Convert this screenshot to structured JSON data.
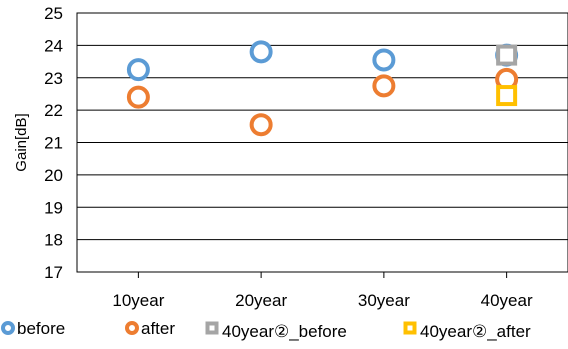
{
  "chart_data": {
    "type": "scatter",
    "title": "",
    "xlabel": "",
    "ylabel": "Gain[dB]",
    "categories": [
      "10year",
      "20year",
      "30year",
      "40year"
    ],
    "ylim": [
      17,
      25
    ],
    "yticks": [
      17,
      18,
      19,
      20,
      21,
      22,
      23,
      24,
      25
    ],
    "grid": "horizontal",
    "legend_position": "bottom",
    "series": [
      {
        "name": "before",
        "marker": "circle",
        "color": "#5B9BD5",
        "points": [
          {
            "x": "10year",
            "y": 23.25
          },
          {
            "x": "20year",
            "y": 23.8
          },
          {
            "x": "30year",
            "y": 23.55
          },
          {
            "x": "40year",
            "y": 23.7
          }
        ]
      },
      {
        "name": "after",
        "marker": "circle",
        "color": "#ED7D31",
        "points": [
          {
            "x": "10year",
            "y": 22.4
          },
          {
            "x": "20year",
            "y": 21.55
          },
          {
            "x": "30year",
            "y": 22.75
          },
          {
            "x": "40year",
            "y": 22.95
          }
        ]
      },
      {
        "name": "40year②_before",
        "marker": "square",
        "color": "#A5A5A5",
        "points": [
          {
            "x": "40year",
            "y": 23.7
          }
        ]
      },
      {
        "name": "40year②_after",
        "marker": "square",
        "color": "#FFC000",
        "points": [
          {
            "x": "40year",
            "y": 22.45
          }
        ]
      }
    ]
  }
}
